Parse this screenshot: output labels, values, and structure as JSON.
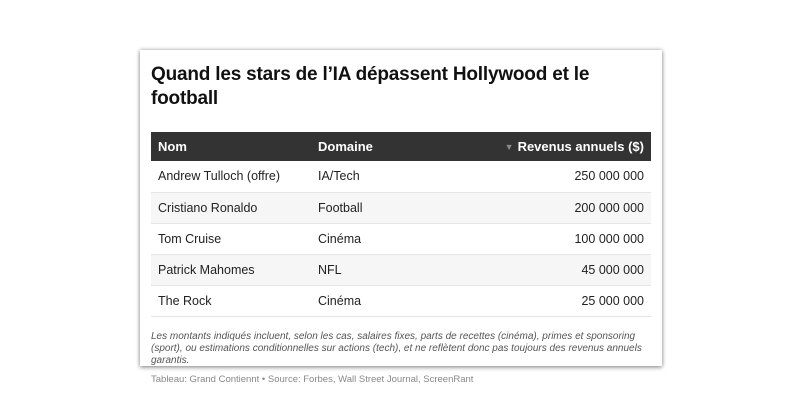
{
  "title": "Quand les stars de l’IA dépassent Hollywood et le football",
  "table": {
    "headers": {
      "name": "Nom",
      "domain": "Domaine",
      "revenue": "Revenus annuels ($)",
      "sort_icon": "sort-desc-icon"
    },
    "rows": [
      {
        "name": "Andrew Tulloch (offre)",
        "domain": "IA/Tech",
        "revenue": "250 000 000"
      },
      {
        "name": "Cristiano Ronaldo",
        "domain": "Football",
        "revenue": "200 000 000"
      },
      {
        "name": "Tom Cruise",
        "domain": "Cinéma",
        "revenue": "100 000 000"
      },
      {
        "name": "Patrick Mahomes",
        "domain": "NFL",
        "revenue": "45 000 000"
      },
      {
        "name": "The Rock",
        "domain": "Cinéma",
        "revenue": "25 000 000"
      }
    ]
  },
  "note": "Les montants indiqués incluent, selon les cas, salaires fixes, parts de recettes (cinéma), primes et sponsoring (sport), ou estimations conditionnelles sur actions (tech), et ne reflètent donc pas toujours des revenus annuels garantis.",
  "source": "Tableau: Grand Contiennt • Source: Forbes, Wall Street Journal, ScreenRant",
  "colors": {
    "header_bg": "#333333",
    "header_text": "#ffffff",
    "stripe": "#f6f6f6"
  }
}
